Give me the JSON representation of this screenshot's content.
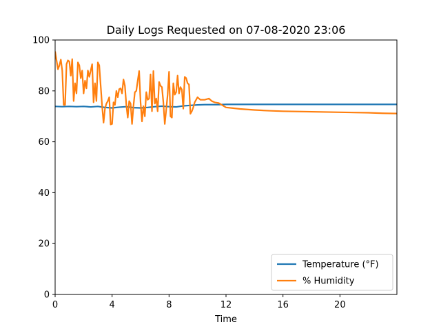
{
  "chart_data": {
    "type": "line",
    "title": "Daily Logs Requested on 07-08-2020 23:06",
    "xlabel": "Time",
    "ylabel": "",
    "xlim": [
      0,
      24
    ],
    "ylim": [
      0,
      100
    ],
    "xticks": [
      0,
      4,
      8,
      12,
      16,
      20
    ],
    "yticks": [
      0,
      20,
      40,
      60,
      80,
      100
    ],
    "grid": false,
    "legend_position": "lower-right",
    "series": [
      {
        "name": "Temperature (°F)",
        "color": "#1f77b4",
        "x": [
          0,
          0.5,
          1,
          1.5,
          2,
          2.5,
          3,
          3.5,
          4,
          4.5,
          5,
          5.5,
          6,
          6.5,
          7,
          7.5,
          8,
          8.5,
          9,
          9.5,
          10,
          10.5,
          11,
          11.5,
          12,
          13,
          14,
          15,
          16,
          18,
          20,
          22,
          24
        ],
        "y": [
          73.9,
          73.8,
          73.9,
          73.8,
          73.9,
          73.7,
          73.9,
          73.5,
          73.3,
          73.6,
          73.8,
          73.4,
          73.3,
          73.5,
          73.8,
          74.0,
          73.8,
          73.7,
          74.1,
          74.3,
          74.5,
          74.6,
          74.6,
          74.6,
          74.7,
          74.7,
          74.7,
          74.7,
          74.7,
          74.7,
          74.7,
          74.7,
          74.7
        ]
      },
      {
        "name": "% Humidity",
        "color": "#ff7f0e",
        "x": [
          0,
          0.1,
          0.2,
          0.3,
          0.4,
          0.5,
          0.6,
          0.7,
          0.8,
          0.9,
          1.0,
          1.1,
          1.2,
          1.3,
          1.4,
          1.5,
          1.6,
          1.7,
          1.8,
          1.9,
          2.0,
          2.1,
          2.2,
          2.3,
          2.4,
          2.5,
          2.6,
          2.7,
          2.8,
          2.9,
          3.0,
          3.1,
          3.2,
          3.3,
          3.4,
          3.5,
          3.6,
          3.7,
          3.8,
          3.9,
          4.0,
          4.1,
          4.2,
          4.3,
          4.4,
          4.5,
          4.6,
          4.7,
          4.8,
          4.9,
          5.0,
          5.1,
          5.2,
          5.3,
          5.4,
          5.5,
          5.6,
          5.7,
          5.8,
          5.9,
          6.0,
          6.1,
          6.2,
          6.3,
          6.4,
          6.5,
          6.6,
          6.7,
          6.8,
          6.9,
          7.0,
          7.1,
          7.2,
          7.3,
          7.4,
          7.5,
          7.6,
          7.7,
          7.8,
          7.9,
          8.0,
          8.1,
          8.2,
          8.3,
          8.4,
          8.5,
          8.6,
          8.7,
          8.8,
          8.9,
          9.0,
          9.1,
          9.2,
          9.3,
          9.4,
          9.5,
          9.6,
          9.7,
          9.8,
          10.0,
          10.2,
          10.5,
          10.8,
          11.0,
          11.2,
          11.5,
          12.0,
          12.5,
          13.0,
          14.0,
          15.0,
          16.0,
          17.0,
          18.0,
          19.0,
          20.0,
          21.0,
          22.0,
          23.0,
          24.0
        ],
        "y": [
          95.5,
          92,
          88.5,
          90,
          92.3,
          88,
          74.5,
          74.5,
          90.5,
          92,
          91.5,
          86,
          92.5,
          76,
          83,
          79,
          91.2,
          90,
          85,
          88,
          79,
          84,
          81,
          88,
          85.5,
          88,
          90.5,
          75.5,
          83,
          76,
          91.2,
          90,
          82,
          74,
          67.5,
          73,
          75,
          76,
          77.5,
          66.8,
          67,
          75.5,
          74.5,
          80,
          77.5,
          80.7,
          81,
          79,
          84.5,
          82,
          74.5,
          69.5,
          76,
          75,
          67,
          74,
          79.5,
          80,
          84,
          87.8,
          75.5,
          68,
          74,
          70,
          79.5,
          76.5,
          77,
          86.5,
          72,
          87.8,
          75,
          77,
          72,
          83.5,
          82,
          81.5,
          75.5,
          67,
          72.5,
          78.5,
          87.5,
          70,
          69.5,
          83,
          78.5,
          79.5,
          86,
          79,
          81.5,
          80.5,
          73,
          85.5,
          85,
          83,
          82.5,
          71,
          72,
          73.5,
          75.5,
          77.5,
          76.5,
          76.5,
          77,
          76,
          75.5,
          75.2,
          73.5,
          73.2,
          72.9,
          72.5,
          72.2,
          72.0,
          71.9,
          71.8,
          71.7,
          71.6,
          71.5,
          71.4,
          71.2,
          71.1
        ]
      }
    ]
  }
}
